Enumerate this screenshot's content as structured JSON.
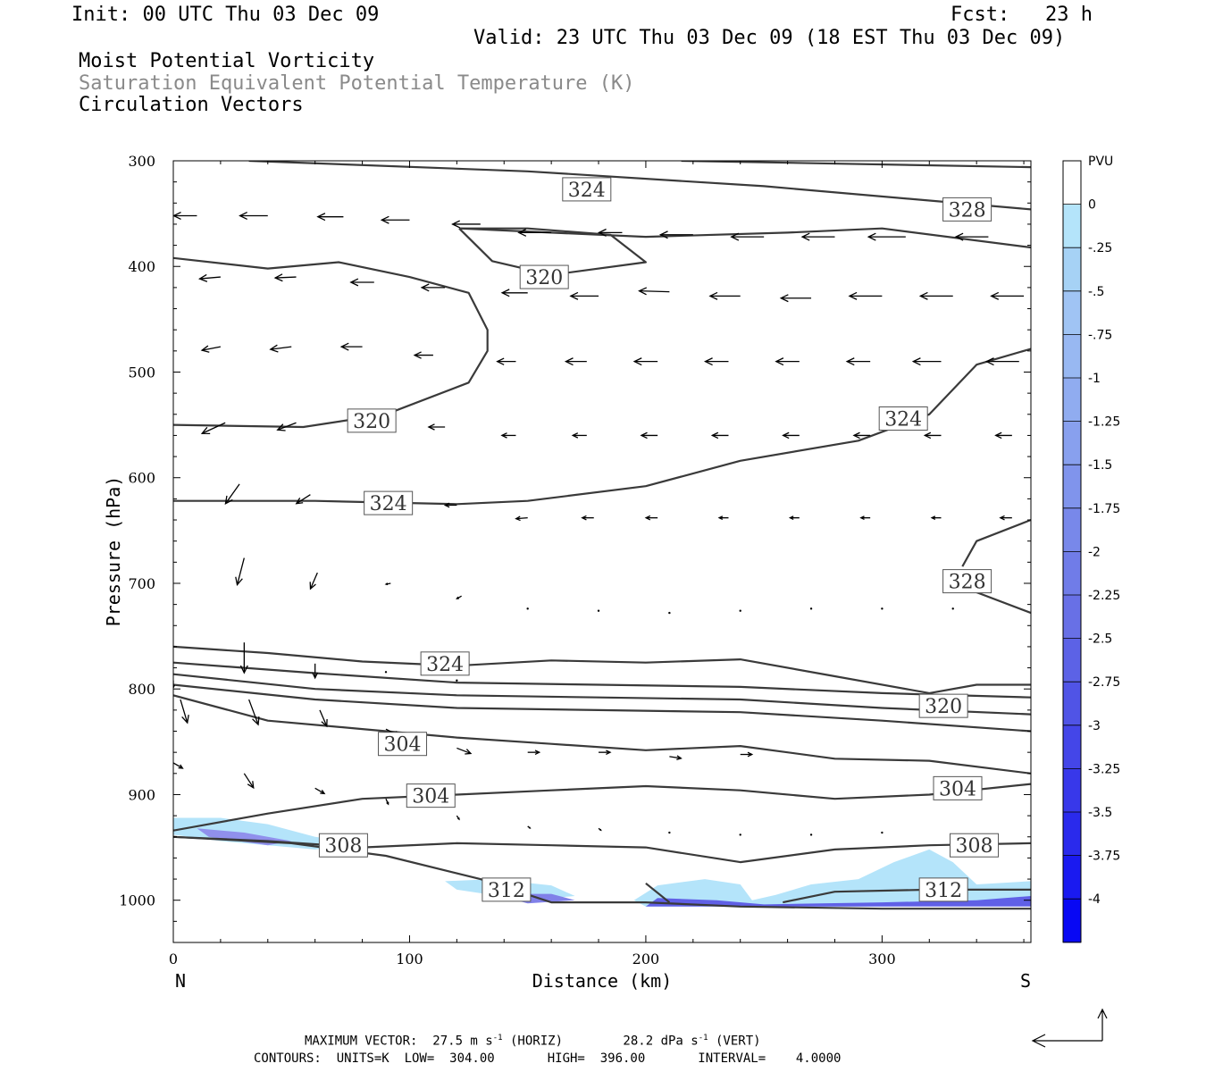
{
  "header": {
    "init": "Init: 00 UTC Thu 03 Dec 09",
    "fcst": "Fcst:   23 h",
    "valid": "Valid: 23 UTC Thu 03 Dec 09 (18 EST Thu 03 Dec 09)",
    "field1": "Moist Potential Vorticity",
    "field2": "Saturation Equivalent Potential Temperature (K)",
    "field3": "Circulation Vectors"
  },
  "footer": {
    "line1": "MAXIMUM VECTOR:  27.5 m s",
    "line1_exp1": "-1",
    "line1_mid": " (HORIZ)        28.2 dPa s",
    "line1_exp2": "-1",
    "line1_end": " (VERT)",
    "line2": "CONTOURS:  UNITS=K  LOW=  304.00       HIGH=  396.00       INTERVAL=    4.0000"
  },
  "chart_data": {
    "type": "contour",
    "xlabel": "Distance (km)",
    "ylabel": "Pressure (hPa)",
    "xlim": [
      0,
      363
    ],
    "ylim": [
      1040,
      300
    ],
    "x_ticks": [
      "0",
      "100",
      "200",
      "300"
    ],
    "x_tick_values": [
      0,
      100,
      200,
      300
    ],
    "y_ticks": [
      "300",
      "400",
      "500",
      "600",
      "700",
      "800",
      "900",
      "1000"
    ],
    "y_tick_values": [
      300,
      400,
      500,
      600,
      700,
      800,
      900,
      1000
    ],
    "left_end_label": "N",
    "right_end_label": "S",
    "colorbar": {
      "title": "PVU",
      "levels": [
        "0",
        "-.25",
        "-.5",
        "-.75",
        "-1",
        "-1.25",
        "-1.5",
        "-1.75",
        "-2",
        "-2.25",
        "-2.5",
        "-2.75",
        "-3",
        "-3.25",
        "-3.5",
        "-3.75",
        "-4"
      ],
      "colors": [
        "#ffffff",
        "#b4e4fa",
        "#a6d2f5",
        "#a0c4f4",
        "#98b8f2",
        "#90acf0",
        "#88a0ee",
        "#8094ec",
        "#7888ea",
        "#707ce8",
        "#6870e6",
        "#5c62e6",
        "#5054e6",
        "#4446e8",
        "#3838ea",
        "#2a2aec",
        "#1a1af0",
        "#0808f4"
      ]
    },
    "contour_labels": [
      {
        "text": "324",
        "x": 175,
        "p": 327
      },
      {
        "text": "328",
        "x": 336,
        "p": 346
      },
      {
        "text": "320",
        "x": 157,
        "p": 410
      },
      {
        "text": "320",
        "x": 84,
        "p": 546
      },
      {
        "text": "324",
        "x": 309,
        "p": 544
      },
      {
        "text": "324",
        "x": 91,
        "p": 624
      },
      {
        "text": "328",
        "x": 336,
        "p": 698
      },
      {
        "text": "324",
        "x": 115,
        "p": 776
      },
      {
        "text": "320",
        "x": 326,
        "p": 816
      },
      {
        "text": "304",
        "x": 97,
        "p": 852
      },
      {
        "text": "304",
        "x": 109,
        "p": 901
      },
      {
        "text": "304",
        "x": 332,
        "p": 894
      },
      {
        "text": "308",
        "x": 72,
        "p": 948
      },
      {
        "text": "308",
        "x": 339,
        "p": 948
      },
      {
        "text": "312",
        "x": 141,
        "p": 990
      },
      {
        "text": "312",
        "x": 326,
        "p": 990
      }
    ],
    "contours": [
      [
        [
          32,
          300
        ],
        [
          150,
          310
        ],
        [
          250,
          324
        ],
        [
          363,
          346
        ]
      ],
      [
        [
          215,
          300
        ],
        [
          363,
          306
        ]
      ],
      [
        [
          121,
          364
        ],
        [
          160,
          368
        ],
        [
          200,
          372
        ],
        [
          260,
          368
        ],
        [
          300,
          364
        ],
        [
          363,
          382
        ]
      ],
      [
        [
          121,
          364
        ],
        [
          135,
          395
        ],
        [
          160,
          408
        ],
        [
          200,
          396
        ],
        [
          185,
          370
        ],
        [
          150,
          364
        ],
        [
          121,
          364
        ]
      ],
      [
        [
          0,
          392
        ],
        [
          40,
          402
        ],
        [
          70,
          396
        ],
        [
          100,
          410
        ],
        [
          125,
          425
        ],
        [
          133,
          460
        ],
        [
          133,
          480
        ],
        [
          125,
          510
        ],
        [
          90,
          540
        ],
        [
          55,
          552
        ],
        [
          0,
          550
        ]
      ],
      [
        [
          0,
          622
        ],
        [
          60,
          622
        ],
        [
          120,
          625
        ],
        [
          150,
          622
        ],
        [
          200,
          608
        ],
        [
          240,
          584
        ],
        [
          290,
          565
        ],
        [
          320,
          540
        ],
        [
          340,
          493
        ],
        [
          363,
          478
        ]
      ],
      [
        [
          334,
          684
        ],
        [
          340,
          660
        ],
        [
          363,
          640
        ]
      ],
      [
        [
          330,
          700
        ],
        [
          363,
          728
        ]
      ],
      [
        [
          0,
          760
        ],
        [
          40,
          766
        ],
        [
          80,
          774
        ],
        [
          120,
          778
        ],
        [
          160,
          773
        ],
        [
          200,
          775
        ],
        [
          240,
          772
        ],
        [
          280,
          788
        ],
        [
          320,
          804
        ],
        [
          340,
          796
        ],
        [
          363,
          796
        ]
      ],
      [
        [
          0,
          775
        ],
        [
          60,
          785
        ],
        [
          120,
          794
        ],
        [
          180,
          796
        ],
        [
          240,
          798
        ],
        [
          300,
          804
        ],
        [
          363,
          808
        ]
      ],
      [
        [
          0,
          786
        ],
        [
          60,
          800
        ],
        [
          120,
          806
        ],
        [
          180,
          808
        ],
        [
          240,
          810
        ],
        [
          300,
          818
        ],
        [
          363,
          824
        ]
      ],
      [
        [
          0,
          796
        ],
        [
          60,
          810
        ],
        [
          120,
          818
        ],
        [
          180,
          820
        ],
        [
          240,
          822
        ],
        [
          300,
          830
        ],
        [
          363,
          840
        ]
      ],
      [
        [
          0,
          806
        ],
        [
          40,
          830
        ],
        [
          80,
          838
        ],
        [
          120,
          846
        ],
        [
          160,
          852
        ],
        [
          200,
          858
        ],
        [
          240,
          854
        ],
        [
          280,
          866
        ],
        [
          320,
          868
        ],
        [
          363,
          880
        ]
      ],
      [
        [
          0,
          934
        ],
        [
          40,
          918
        ],
        [
          80,
          904
        ],
        [
          120,
          900
        ],
        [
          160,
          896
        ],
        [
          200,
          892
        ],
        [
          240,
          896
        ],
        [
          280,
          904
        ],
        [
          320,
          900
        ],
        [
          363,
          890
        ]
      ],
      [
        [
          0,
          940
        ],
        [
          40,
          944
        ],
        [
          80,
          950
        ],
        [
          120,
          946
        ],
        [
          160,
          948
        ],
        [
          200,
          950
        ],
        [
          240,
          964
        ],
        [
          280,
          952
        ],
        [
          320,
          948
        ],
        [
          363,
          946
        ]
      ],
      [
        [
          0,
          940
        ],
        [
          50,
          946
        ],
        [
          90,
          958
        ],
        [
          130,
          980
        ],
        [
          160,
          1002
        ],
        [
          200,
          1002
        ],
        [
          240,
          1006
        ],
        [
          300,
          1008
        ],
        [
          363,
          1008
        ]
      ],
      [
        [
          200,
          984
        ],
        [
          210,
          1002
        ]
      ],
      [
        [
          258,
          1002
        ],
        [
          280,
          992
        ],
        [
          320,
          990
        ],
        [
          363,
          990
        ]
      ]
    ],
    "shading": [
      {
        "color": "#b4e4fa",
        "pts": [
          [
            0,
            922
          ],
          [
            20,
            922
          ],
          [
            40,
            928
          ],
          [
            60,
            940
          ],
          [
            80,
            946
          ],
          [
            60,
            952
          ],
          [
            20,
            944
          ],
          [
            0,
            938
          ]
        ]
      },
      {
        "color": "#9090ec",
        "pts": [
          [
            10,
            932
          ],
          [
            30,
            936
          ],
          [
            50,
            944
          ],
          [
            40,
            948
          ],
          [
            15,
            940
          ]
        ]
      },
      {
        "color": "#b4e4fa",
        "pts": [
          [
            115,
            982
          ],
          [
            135,
            980
          ],
          [
            160,
            986
          ],
          [
            170,
            996
          ],
          [
            150,
            1000
          ],
          [
            120,
            990
          ]
        ]
      },
      {
        "color": "#8080e8",
        "pts": [
          [
            135,
            994
          ],
          [
            160,
            994
          ],
          [
            170,
            1000
          ],
          [
            150,
            1003
          ]
        ]
      },
      {
        "color": "#b4e4fa",
        "pts": [
          [
            195,
            1000
          ],
          [
            205,
            986
          ],
          [
            225,
            980
          ],
          [
            240,
            985
          ],
          [
            245,
            1000
          ],
          [
            255,
            995
          ],
          [
            270,
            985
          ],
          [
            290,
            980
          ],
          [
            305,
            964
          ],
          [
            320,
            952
          ],
          [
            330,
            964
          ],
          [
            340,
            985
          ],
          [
            363,
            982
          ],
          [
            363,
            1004
          ],
          [
            300,
            1006
          ],
          [
            200,
            1006
          ]
        ]
      },
      {
        "color": "#6060e6",
        "pts": [
          [
            205,
            998
          ],
          [
            230,
            1000
          ],
          [
            250,
            1004
          ],
          [
            300,
            1002
          ],
          [
            340,
            1000
          ],
          [
            363,
            996
          ],
          [
            363,
            1006
          ],
          [
            200,
            1006
          ]
        ]
      }
    ],
    "vectors": [
      [
        10,
        352,
        -10,
        0
      ],
      [
        40,
        352,
        -12,
        0
      ],
      [
        72,
        353,
        -11,
        0
      ],
      [
        100,
        356,
        -12,
        0
      ],
      [
        130,
        360,
        -12,
        0
      ],
      [
        160,
        368,
        -14,
        0
      ],
      [
        190,
        368,
        -10,
        0
      ],
      [
        220,
        370,
        -14,
        0
      ],
      [
        250,
        372,
        -14,
        0
      ],
      [
        280,
        372,
        -14,
        0
      ],
      [
        310,
        372,
        -16,
        0
      ],
      [
        345,
        372,
        -14,
        0
      ],
      [
        20,
        410,
        -9,
        2
      ],
      [
        52,
        410,
        -9,
        1
      ],
      [
        85,
        415,
        -10,
        0
      ],
      [
        115,
        420,
        -10,
        0
      ],
      [
        150,
        425,
        -11,
        0
      ],
      [
        180,
        428,
        -12,
        0
      ],
      [
        210,
        424,
        -13,
        -1
      ],
      [
        240,
        428,
        -13,
        0
      ],
      [
        270,
        430,
        -13,
        0
      ],
      [
        300,
        428,
        -14,
        0
      ],
      [
        330,
        428,
        -14,
        0
      ],
      [
        360,
        428,
        -14,
        0
      ],
      [
        20,
        476,
        -8,
        4
      ],
      [
        50,
        476,
        -9,
        3
      ],
      [
        80,
        476,
        -9,
        0
      ],
      [
        110,
        484,
        -8,
        0
      ],
      [
        145,
        490,
        -8,
        0
      ],
      [
        175,
        490,
        -9,
        0
      ],
      [
        205,
        490,
        -10,
        0
      ],
      [
        235,
        490,
        -10,
        0
      ],
      [
        265,
        490,
        -10,
        0
      ],
      [
        295,
        490,
        -10,
        0
      ],
      [
        325,
        490,
        -12,
        0
      ],
      [
        358,
        490,
        -14,
        0
      ],
      [
        22,
        548,
        -10,
        12
      ],
      [
        52,
        548,
        -8,
        8
      ],
      [
        85,
        546,
        -8,
        0
      ],
      [
        115,
        552,
        -7,
        0
      ],
      [
        145,
        560,
        -6,
        0
      ],
      [
        175,
        560,
        -6,
        0
      ],
      [
        205,
        560,
        -7,
        0
      ],
      [
        235,
        560,
        -7,
        0
      ],
      [
        265,
        560,
        -7,
        0
      ],
      [
        295,
        560,
        -7,
        0
      ],
      [
        325,
        560,
        -7,
        0
      ],
      [
        355,
        560,
        -7,
        0
      ],
      [
        28,
        606,
        -6,
        22
      ],
      [
        58,
        616,
        -6,
        10
      ],
      [
        120,
        626,
        -5,
        0
      ],
      [
        150,
        638,
        -5,
        1
      ],
      [
        178,
        638,
        -5,
        0
      ],
      [
        205,
        638,
        -5,
        0
      ],
      [
        235,
        638,
        -4,
        0
      ],
      [
        265,
        638,
        -4,
        0
      ],
      [
        295,
        638,
        -4,
        0
      ],
      [
        325,
        638,
        -4,
        0
      ],
      [
        355,
        638,
        -5,
        0
      ],
      [
        30,
        676,
        -3,
        30
      ],
      [
        61,
        690,
        -3,
        18
      ],
      [
        92,
        700,
        -2,
        1
      ],
      [
        122,
        712,
        -2,
        3
      ],
      [
        150,
        724,
        -1,
        1
      ],
      [
        180,
        726,
        -1,
        1
      ],
      [
        210,
        728,
        -1,
        1
      ],
      [
        240,
        726,
        -1,
        1
      ],
      [
        270,
        724,
        -1,
        1
      ],
      [
        300,
        724,
        -1,
        0
      ],
      [
        330,
        724,
        -1,
        0
      ],
      [
        30,
        756,
        0,
        34
      ],
      [
        60,
        776,
        0,
        16
      ],
      [
        90,
        784,
        0,
        2
      ],
      [
        120,
        792,
        0,
        2
      ],
      [
        0,
        792,
        0,
        8
      ],
      [
        3,
        810,
        3,
        26
      ],
      [
        32,
        810,
        4,
        28
      ],
      [
        62,
        820,
        3,
        18
      ],
      [
        90,
        838,
        6,
        8
      ],
      [
        120,
        856,
        6,
        6
      ],
      [
        150,
        860,
        5,
        0
      ],
      [
        180,
        860,
        5,
        0
      ],
      [
        210,
        864,
        5,
        2
      ],
      [
        240,
        862,
        5,
        0
      ],
      [
        0,
        870,
        4,
        6
      ],
      [
        30,
        880,
        4,
        16
      ],
      [
        60,
        894,
        4,
        6
      ],
      [
        90,
        904,
        1,
        6
      ],
      [
        120,
        920,
        1,
        4
      ],
      [
        150,
        930,
        1,
        2
      ],
      [
        180,
        932,
        1,
        2
      ],
      [
        210,
        936,
        0,
        2
      ],
      [
        240,
        938,
        0,
        2
      ],
      [
        270,
        938,
        0,
        2
      ],
      [
        300,
        936,
        0,
        2
      ]
    ]
  }
}
